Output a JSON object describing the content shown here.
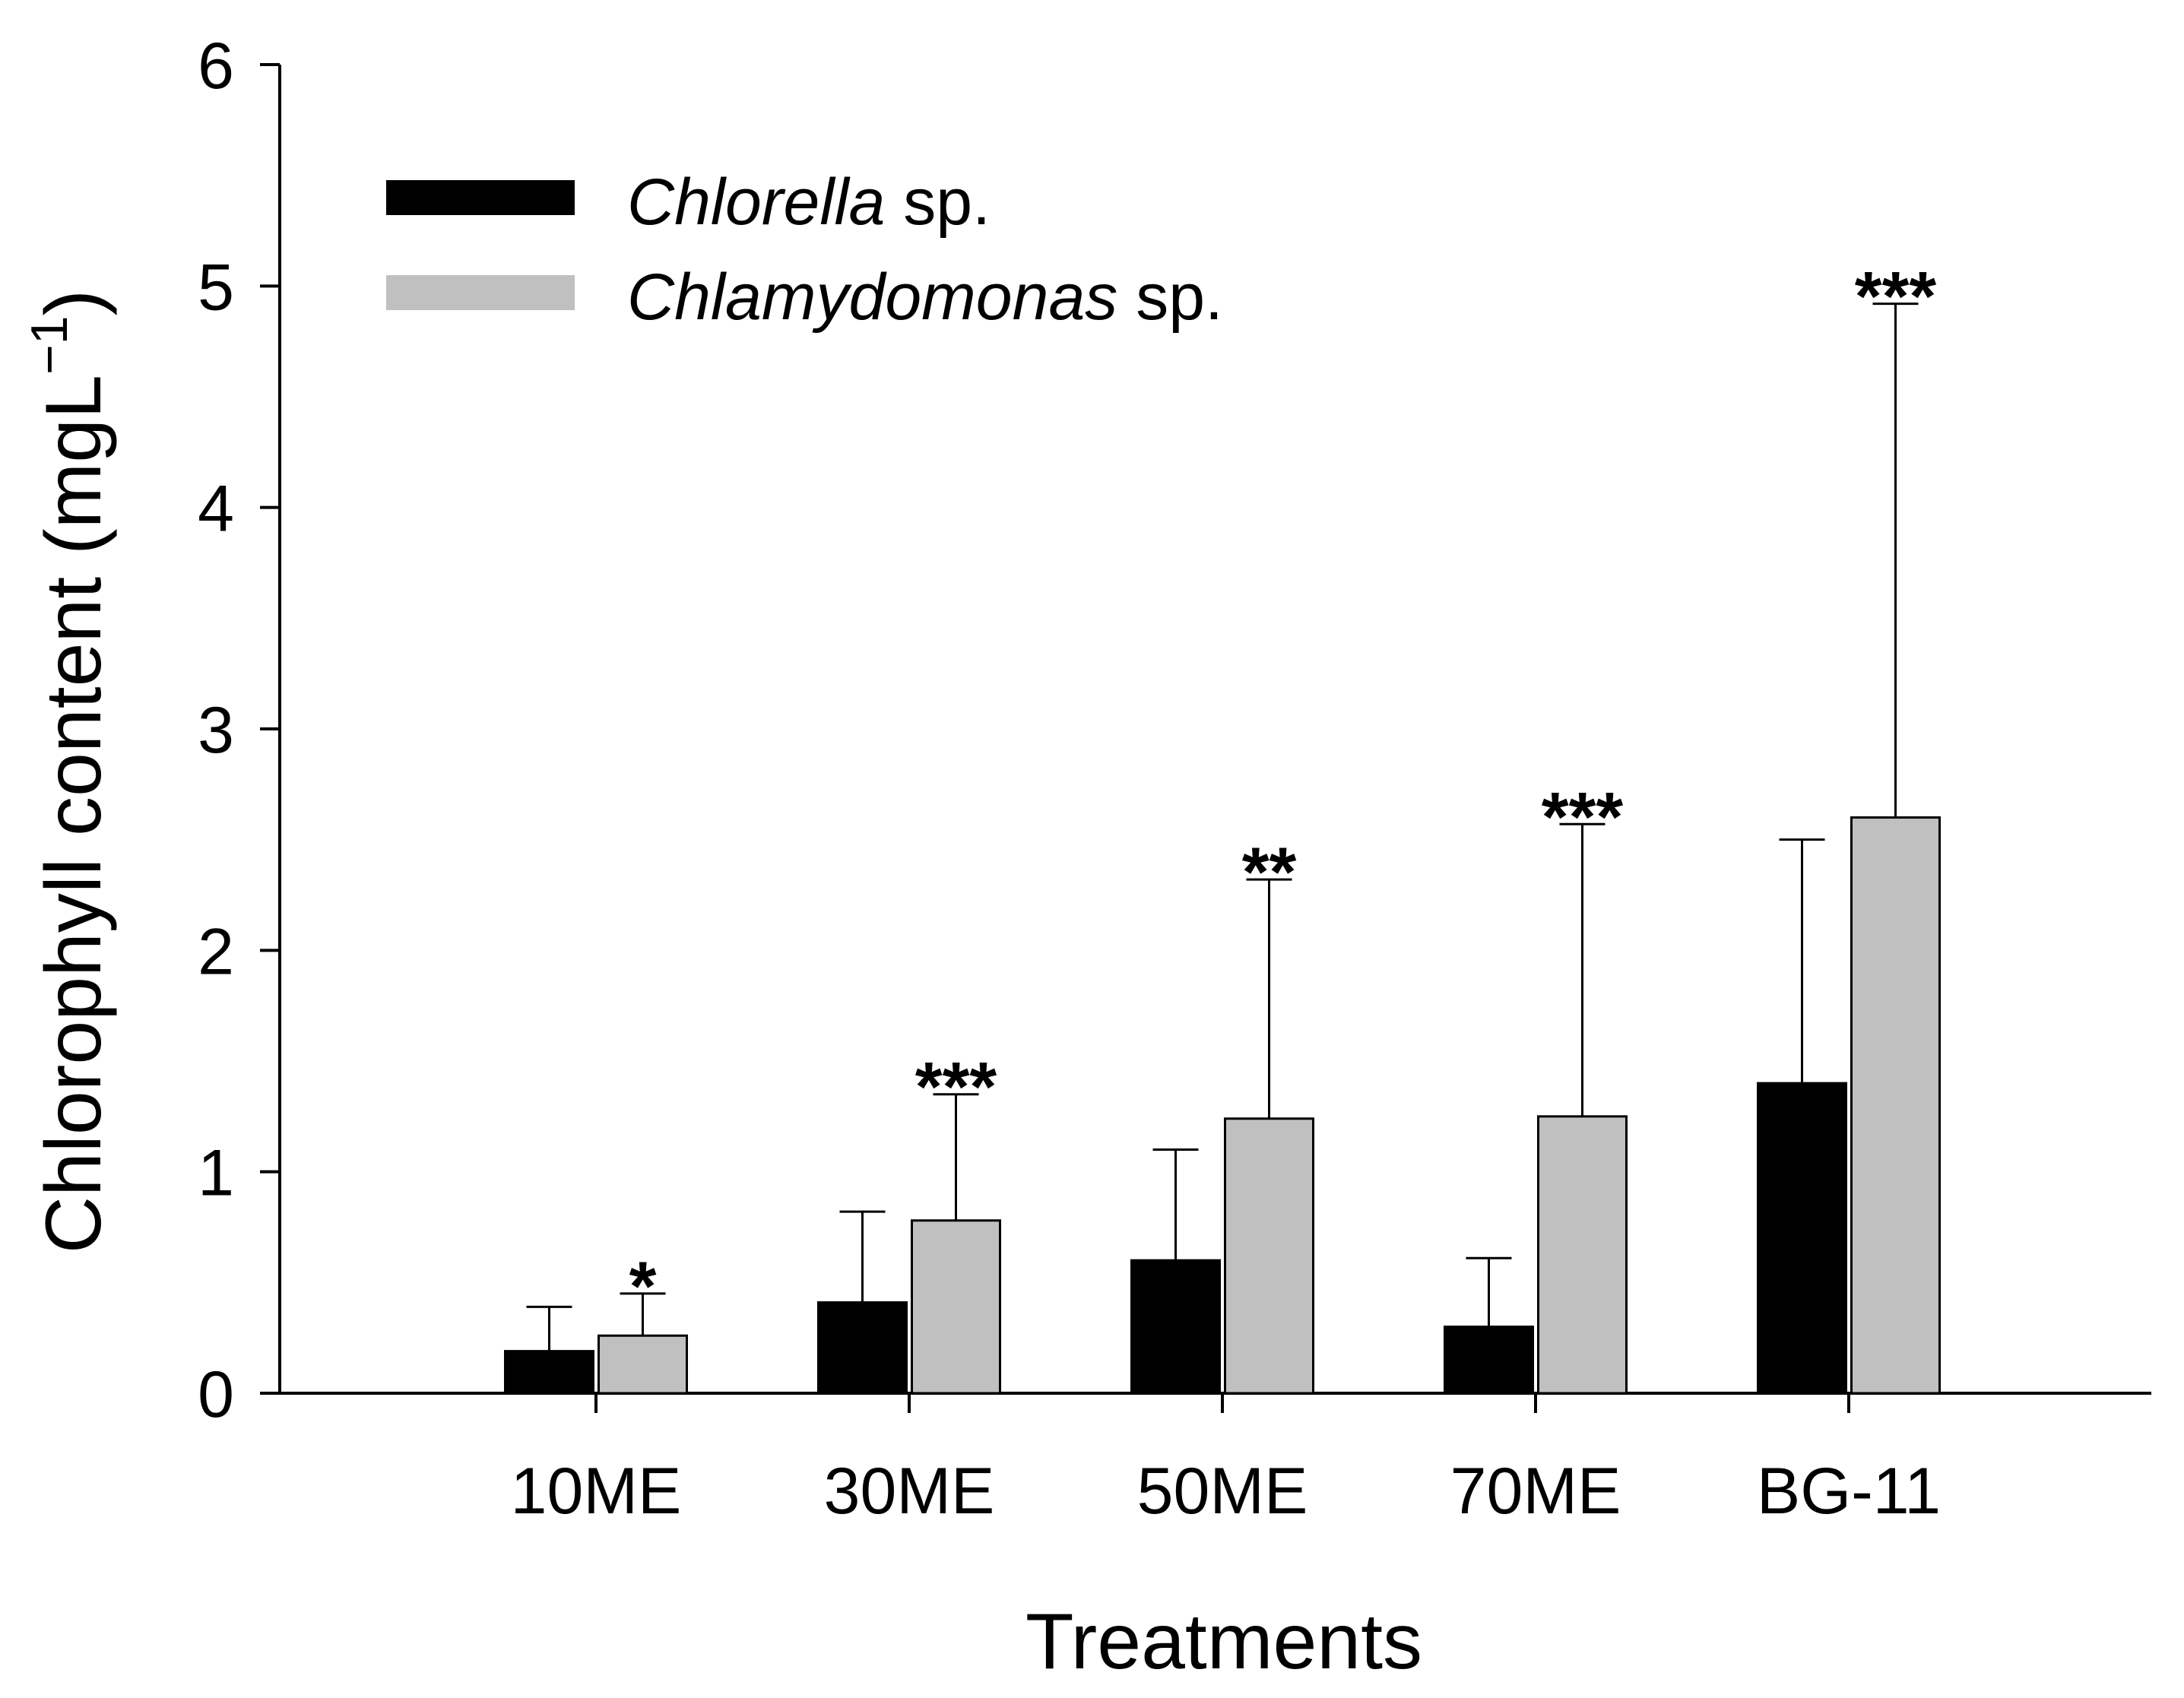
{
  "chart_data": {
    "type": "bar",
    "title": "",
    "xlabel": "Treatments",
    "ylabel_main": "Chlorophyll content (mgL",
    "ylabel_sup": "−1",
    "ylabel_close": ")",
    "ylim": [
      0,
      6
    ],
    "yticks": [
      "0",
      "1",
      "2",
      "3",
      "4",
      "5",
      "6"
    ],
    "categories": [
      "10ME",
      "30ME",
      "50ME",
      "70ME",
      "BG-11"
    ],
    "series": [
      {
        "name_italic": "Chlorella",
        "name_suffix": " sp.",
        "color": "#000000",
        "values": [
          0.19,
          0.41,
          0.6,
          0.3,
          1.4
        ],
        "errors": [
          0.2,
          0.41,
          0.5,
          0.31,
          1.1
        ]
      },
      {
        "name_italic": "Chlamydomonas",
        "name_suffix": " sp.",
        "color": "#c0c0c0",
        "values": [
          0.26,
          0.78,
          1.24,
          1.25,
          2.6
        ],
        "errors": [
          0.19,
          0.57,
          1.08,
          1.32,
          2.32
        ]
      }
    ],
    "significance": [
      "*",
      "***",
      "**",
      "***",
      "***"
    ],
    "legend_position": "top-left",
    "grid": false
  }
}
